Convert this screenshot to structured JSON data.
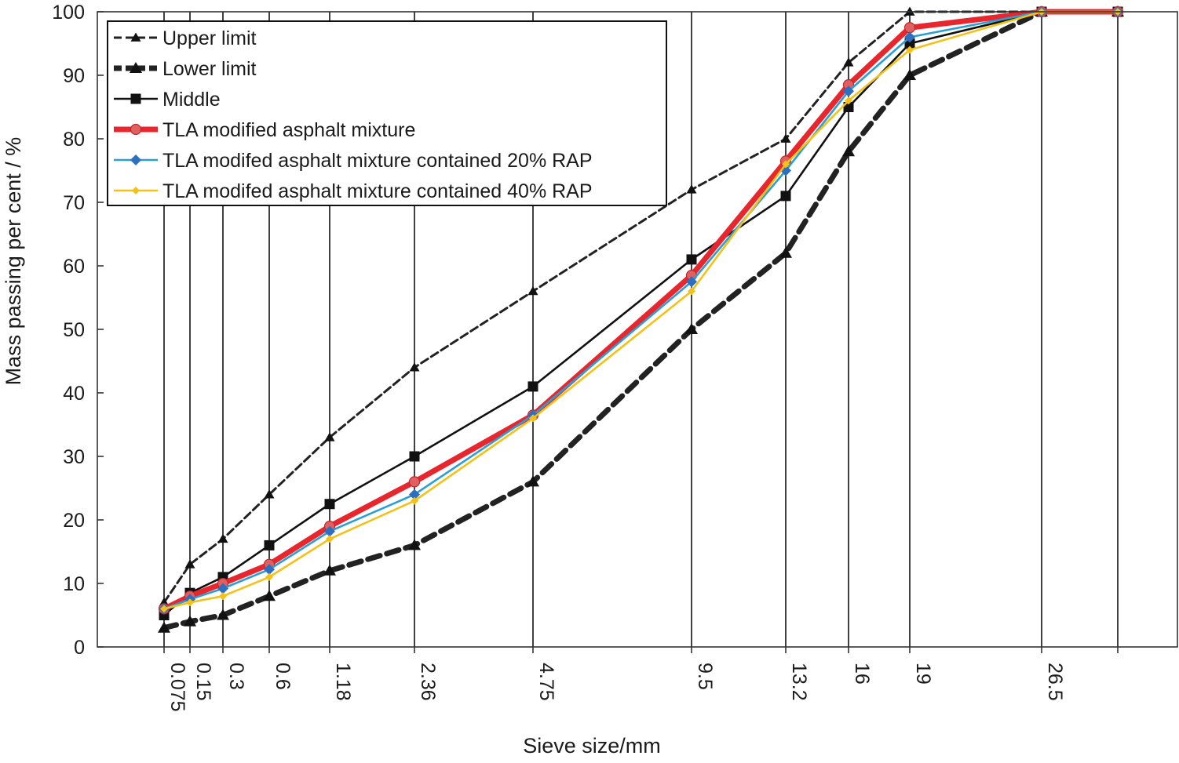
{
  "chart_data": {
    "type": "line",
    "title": "",
    "xlabel": "Sieve size/mm",
    "ylabel": "Mass passing per cent / %",
    "ylim": [
      0,
      100
    ],
    "y_ticks": [
      "0",
      "10",
      "20",
      "30",
      "40",
      "50",
      "60",
      "70",
      "80",
      "90",
      "100"
    ],
    "categories": [
      "0.075",
      "0.15",
      "0.3",
      "0.6",
      "1.18",
      "2.36",
      "4.75",
      "9.5",
      "13.2",
      "16",
      "19",
      "26.5",
      ""
    ],
    "x_scale": "power 0.45 (nonlinear)",
    "grid": "vertical lines at each sieve size",
    "legend_position": "top-left",
    "series": [
      {
        "name": "Upper limit",
        "color": "#222222",
        "marker": "triangle",
        "style": "dashed-thin",
        "values": [
          7,
          13,
          17,
          24,
          33,
          44,
          56,
          72,
          80,
          92,
          100,
          100,
          100
        ]
      },
      {
        "name": "Lower limit",
        "color": "#222222",
        "marker": "triangle",
        "style": "dashed-thick",
        "values": [
          3,
          4,
          5,
          8,
          12,
          16,
          26,
          50,
          62,
          78,
          90,
          100,
          100
        ]
      },
      {
        "name": "Middle",
        "color": "#111111",
        "marker": "square",
        "style": "solid",
        "values": [
          5,
          8.5,
          11,
          16,
          22.5,
          30,
          41,
          61,
          71,
          85,
          95,
          100,
          100
        ]
      },
      {
        "name": "TLA modified asphalt mixture",
        "color": "#e8262d",
        "marker": "circle",
        "style": "solid-thick",
        "values": [
          6,
          8,
          10,
          13,
          19,
          26,
          36.5,
          58.5,
          76.5,
          88.5,
          97.5,
          100,
          100
        ]
      },
      {
        "name": "TLA modifed asphalt mixture contained 20% RAP",
        "color": "#2a9fd6",
        "marker": "diamond",
        "style": "solid",
        "values": [
          6,
          7.5,
          9.2,
          12.2,
          18.2,
          24,
          36.5,
          57.5,
          75,
          87.5,
          96,
          100,
          100
        ]
      },
      {
        "name": "TLA modifed asphalt mixture contained 40% RAP",
        "color": "#f5c116",
        "marker": "diamond",
        "style": "solid",
        "values": [
          6,
          7,
          8,
          11,
          17,
          23,
          36,
          56,
          76,
          86,
          94,
          100,
          100
        ]
      }
    ]
  }
}
